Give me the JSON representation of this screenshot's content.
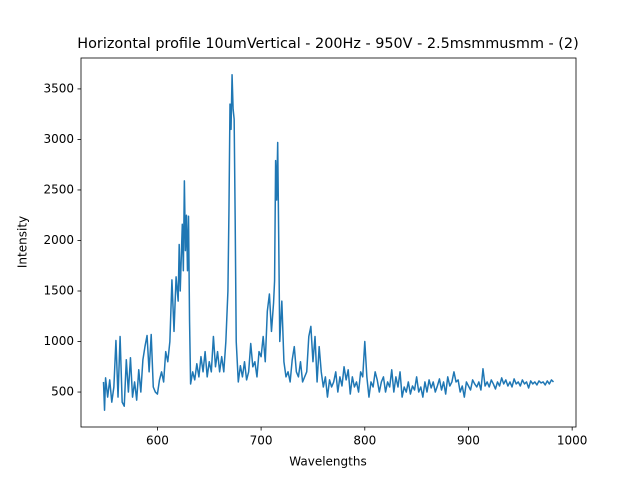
{
  "chart_data": {
    "type": "line",
    "title": "Horizontal profile 10umVertical - 200Hz - 950V - 2.5msmmusmm - (2)",
    "x_label": "Wavelengths",
    "y_label": "Intensity",
    "x": [
      548,
      549,
      550,
      552,
      554,
      556,
      558,
      560,
      562,
      564,
      566,
      568,
      570,
      572,
      574,
      576,
      578,
      580,
      582,
      584,
      586,
      588,
      590,
      592,
      594,
      596,
      598,
      600,
      602,
      604,
      606,
      608,
      610,
      612,
      614,
      616,
      618,
      620,
      621,
      622,
      624,
      625,
      626,
      627,
      628,
      629,
      630,
      631,
      632,
      634,
      636,
      638,
      640,
      642,
      644,
      646,
      648,
      650,
      652,
      654,
      656,
      658,
      660,
      662,
      664,
      666,
      668,
      669,
      670,
      671,
      672,
      673,
      674,
      675,
      676,
      678,
      680,
      682,
      684,
      686,
      688,
      690,
      692,
      694,
      696,
      698,
      700,
      702,
      704,
      706,
      708,
      710,
      712,
      713,
      714,
      715,
      716,
      717,
      718,
      720,
      722,
      724,
      726,
      728,
      730,
      732,
      734,
      736,
      738,
      740,
      742,
      744,
      746,
      748,
      750,
      752,
      754,
      756,
      758,
      760,
      762,
      764,
      766,
      768,
      770,
      772,
      774,
      776,
      778,
      780,
      782,
      784,
      786,
      788,
      790,
      792,
      794,
      796,
      798,
      800,
      802,
      804,
      806,
      808,
      810,
      812,
      814,
      816,
      818,
      820,
      822,
      824,
      826,
      828,
      830,
      832,
      834,
      836,
      838,
      840,
      842,
      844,
      846,
      848,
      850,
      852,
      854,
      856,
      858,
      860,
      862,
      864,
      866,
      868,
      870,
      872,
      874,
      876,
      878,
      880,
      882,
      884,
      886,
      888,
      890,
      892,
      894,
      896,
      898,
      900,
      902,
      904,
      906,
      908,
      910,
      912,
      914,
      916,
      918,
      920,
      922,
      924,
      926,
      928,
      930,
      932,
      934,
      936,
      938,
      940,
      942,
      944,
      946,
      948,
      950,
      952,
      954,
      956,
      958,
      960,
      962,
      964,
      966,
      968,
      970,
      972,
      974,
      976,
      978,
      980,
      982
    ],
    "series": [
      {
        "color": "#1f77b4",
        "values": [
          600,
          320,
          640,
          450,
          620,
          400,
          550,
          1010,
          450,
          1050,
          400,
          360,
          820,
          500,
          840,
          450,
          600,
          420,
          720,
          500,
          820,
          950,
          1060,
          700,
          1070,
          550,
          500,
          480,
          620,
          700,
          600,
          900,
          800,
          1000,
          1610,
          1100,
          1640,
          1400,
          1960,
          1500,
          2160,
          1700,
          2590,
          1900,
          2250,
          1700,
          2240,
          1200,
          580,
          700,
          620,
          780,
          650,
          850,
          700,
          900,
          650,
          800,
          700,
          1050,
          750,
          900,
          700,
          850,
          700,
          1000,
          1500,
          2300,
          3350,
          3100,
          3640,
          3300,
          3200,
          2200,
          1000,
          600,
          760,
          650,
          800,
          620,
          700,
          980,
          750,
          800,
          650,
          900,
          850,
          1050,
          800,
          1300,
          1470,
          1100,
          1380,
          1600,
          2790,
          2400,
          2970,
          2000,
          1000,
          1400,
          800,
          650,
          700,
          600,
          820,
          950,
          700,
          650,
          800,
          600,
          650,
          700,
          1050,
          1150,
          800,
          1050,
          600,
          950,
          700,
          550,
          650,
          450,
          620,
          550,
          600,
          700,
          500,
          650,
          560,
          750,
          620,
          720,
          480,
          650,
          550,
          600,
          500,
          700,
          650,
          1000,
          650,
          450,
          600,
          550,
          700,
          620,
          500,
          600,
          650,
          500,
          600,
          550,
          720,
          500,
          650,
          550,
          700,
          450,
          550,
          500,
          600,
          480,
          560,
          520,
          650,
          500,
          550,
          450,
          600,
          500,
          620,
          540,
          600,
          500,
          560,
          630,
          520,
          600,
          480,
          650,
          560,
          600,
          700,
          600,
          620,
          500,
          560,
          450,
          600,
          560,
          520,
          620,
          580,
          550,
          600,
          520,
          730,
          560,
          600,
          550,
          620,
          580,
          530,
          600,
          560,
          640,
          580,
          620,
          560,
          600,
          550,
          630,
          580,
          600,
          560,
          620,
          580,
          600,
          540,
          610,
          580,
          600,
          570,
          610,
          590,
          600,
          570,
          610,
          580,
          620,
          600
        ]
      }
    ],
    "xlim": [
      526.3,
      1003.7
    ],
    "ylim": [
      154,
      3806
    ],
    "xticks": [
      600,
      700,
      800,
      900,
      1000
    ],
    "yticks": [
      500,
      1000,
      1500,
      2000,
      2500,
      3000,
      3500
    ],
    "grid": false
  }
}
